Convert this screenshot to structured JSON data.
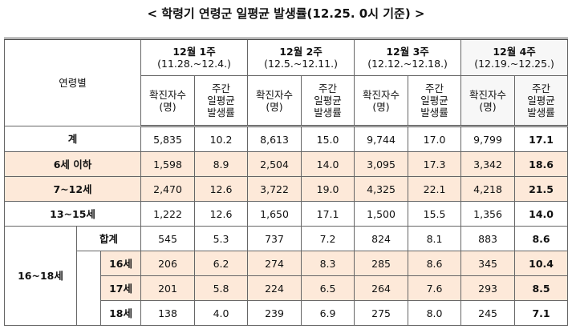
{
  "title": "< 학령기 연령군 일평균 발생률(12.25. 0시 기준) >",
  "table": {
    "corner": "연령별",
    "weeks": [
      {
        "label": "12월 1주",
        "range": "(11.28.~12.4.)",
        "columns": [
          [
            "확진자수",
            "(명)"
          ],
          [
            "주간",
            "일평균",
            "발생률"
          ]
        ]
      },
      {
        "label": "12월 2주",
        "range": "(12.5.~12.11.)",
        "columns": [
          [
            "확진자수",
            "(명)"
          ],
          [
            "주간",
            "일평균",
            "발생률"
          ]
        ]
      },
      {
        "label": "12월 3주",
        "range": "(12.12.~12.18.)",
        "columns": [
          [
            "확진자수",
            "(명)"
          ],
          [
            "주간",
            "일평균",
            "발생률"
          ]
        ]
      },
      {
        "label": "12월 4주",
        "range": "(12.19.~12.25.)",
        "columns": [
          [
            "확진자수",
            "(명)"
          ],
          [
            "주간",
            "일평균",
            "발생률"
          ]
        ]
      }
    ],
    "rows": [
      {
        "label": "계",
        "shaded": false,
        "cells": [
          "5,835",
          "10.2",
          "8,613",
          "15.0",
          "9,744",
          "17.0",
          "9,799",
          "17.1"
        ]
      },
      {
        "label": "6세 이하",
        "shaded": true,
        "cells": [
          "1,598",
          "8.9",
          "2,504",
          "14.0",
          "3,095",
          "17.3",
          "3,342",
          "18.6"
        ]
      },
      {
        "label": "7~12세",
        "shaded": true,
        "cells": [
          "2,470",
          "12.6",
          "3,722",
          "19.0",
          "4,325",
          "22.1",
          "4,218",
          "21.5"
        ]
      },
      {
        "label": "13~15세",
        "shaded": false,
        "cells": [
          "1,222",
          "12.6",
          "1,650",
          "17.1",
          "1,500",
          "15.5",
          "1,356",
          "14.0"
        ]
      }
    ],
    "group": {
      "label": "16~18세",
      "rows": [
        {
          "label": "합계",
          "shaded": false,
          "cells": [
            "545",
            "5.3",
            "737",
            "7.2",
            "824",
            "8.1",
            "883",
            "8.6"
          ]
        },
        {
          "label": "16세",
          "shaded": true,
          "cells": [
            "206",
            "6.2",
            "274",
            "8.3",
            "285",
            "8.6",
            "345",
            "10.4"
          ]
        },
        {
          "label": "17세",
          "shaded": true,
          "cells": [
            "201",
            "5.8",
            "224",
            "6.5",
            "264",
            "7.6",
            "293",
            "8.5"
          ]
        },
        {
          "label": "18세",
          "shaded": false,
          "cells": [
            "138",
            "4.0",
            "239",
            "6.9",
            "275",
            "8.0",
            "245",
            "7.1"
          ]
        }
      ]
    }
  }
}
